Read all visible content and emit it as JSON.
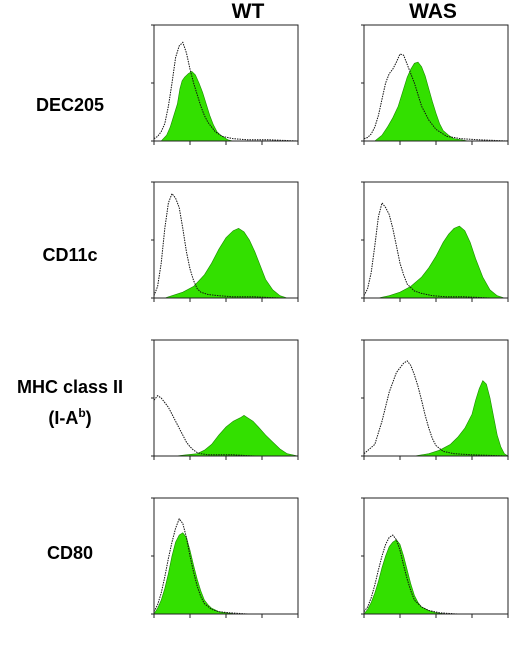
{
  "columns": [
    "WT",
    "WAS"
  ],
  "rows": [
    {
      "label": "DEC205"
    },
    {
      "label": "CD11c"
    },
    {
      "label": "MHC class II",
      "label2_prefix": "(I-A",
      "label2_sup": "b",
      "label2_suffix": ")"
    },
    {
      "label": "CD80"
    }
  ],
  "colors": {
    "filled": "#33e000",
    "outline": "#111111",
    "axis": "#222222"
  },
  "chart_data": [
    {
      "type": "area",
      "row": "DEC205",
      "column": "WT",
      "xlim": [
        0,
        4
      ],
      "ylim": [
        0,
        1
      ],
      "series": [
        {
          "style": "filled",
          "x": [
            0,
            0.2,
            0.35,
            0.45,
            0.55,
            0.65,
            0.72,
            0.78,
            0.85,
            0.95,
            1.05,
            1.15,
            1.25,
            1.35,
            1.45,
            1.55,
            1.65,
            1.75,
            1.85,
            1.95,
            2.05,
            2.2,
            2.4
          ],
          "values": [
            0,
            0,
            0.05,
            0.12,
            0.22,
            0.32,
            0.45,
            0.52,
            0.55,
            0.58,
            0.6,
            0.57,
            0.5,
            0.42,
            0.32,
            0.22,
            0.14,
            0.08,
            0.05,
            0.03,
            0.01,
            0,
            0
          ]
        },
        {
          "style": "outline",
          "x": [
            0,
            0.1,
            0.2,
            0.3,
            0.4,
            0.5,
            0.6,
            0.7,
            0.8,
            0.9,
            1.0,
            1.1,
            1.2,
            1.3,
            1.4,
            1.5,
            1.7,
            1.9,
            2.2,
            2.6,
            3.2,
            4.0
          ],
          "values": [
            0.02,
            0.04,
            0.08,
            0.15,
            0.3,
            0.5,
            0.72,
            0.82,
            0.85,
            0.76,
            0.62,
            0.5,
            0.4,
            0.3,
            0.22,
            0.16,
            0.08,
            0.04,
            0.02,
            0.01,
            0.01,
            0
          ]
        }
      ]
    },
    {
      "type": "area",
      "row": "DEC205",
      "column": "WAS",
      "xlim": [
        0,
        4
      ],
      "ylim": [
        0,
        1
      ],
      "series": [
        {
          "style": "filled",
          "x": [
            0,
            0.3,
            0.5,
            0.65,
            0.8,
            0.95,
            1.1,
            1.2,
            1.3,
            1.4,
            1.5,
            1.6,
            1.7,
            1.8,
            1.9,
            2.0,
            2.1,
            2.2,
            2.35,
            2.5,
            2.7,
            2.9
          ],
          "values": [
            0,
            0,
            0.05,
            0.12,
            0.2,
            0.3,
            0.45,
            0.55,
            0.62,
            0.67,
            0.68,
            0.64,
            0.56,
            0.45,
            0.34,
            0.24,
            0.15,
            0.09,
            0.05,
            0.02,
            0.01,
            0
          ]
        },
        {
          "style": "outline",
          "x": [
            0,
            0.1,
            0.2,
            0.3,
            0.4,
            0.5,
            0.6,
            0.7,
            0.8,
            0.9,
            1.0,
            1.1,
            1.2,
            1.3,
            1.4,
            1.5,
            1.6,
            1.8,
            2.0,
            2.3,
            2.7,
            3.2,
            4.0
          ],
          "values": [
            0.02,
            0.03,
            0.06,
            0.12,
            0.22,
            0.36,
            0.5,
            0.58,
            0.62,
            0.68,
            0.75,
            0.74,
            0.66,
            0.58,
            0.5,
            0.4,
            0.3,
            0.18,
            0.1,
            0.04,
            0.02,
            0.01,
            0
          ]
        }
      ]
    },
    {
      "type": "area",
      "row": "CD11c",
      "column": "WT",
      "xlim": [
        0,
        4
      ],
      "ylim": [
        0,
        1
      ],
      "series": [
        {
          "style": "filled",
          "x": [
            0,
            0.3,
            0.5,
            0.8,
            1.1,
            1.4,
            1.6,
            1.8,
            2.0,
            2.2,
            2.35,
            2.5,
            2.65,
            2.8,
            2.95,
            3.1,
            3.3,
            3.5,
            3.7,
            4.0
          ],
          "values": [
            0,
            0,
            0.02,
            0.05,
            0.1,
            0.2,
            0.3,
            0.42,
            0.52,
            0.58,
            0.6,
            0.57,
            0.5,
            0.4,
            0.28,
            0.16,
            0.07,
            0.02,
            0,
            0
          ]
        },
        {
          "style": "outline",
          "x": [
            0,
            0.1,
            0.2,
            0.3,
            0.4,
            0.5,
            0.6,
            0.7,
            0.8,
            0.9,
            1.0,
            1.1,
            1.2,
            1.3,
            1.5,
            1.8,
            2.2,
            2.8,
            3.5,
            4.0
          ],
          "values": [
            0.02,
            0.1,
            0.3,
            0.6,
            0.82,
            0.9,
            0.86,
            0.78,
            0.6,
            0.4,
            0.25,
            0.15,
            0.08,
            0.05,
            0.03,
            0.02,
            0.01,
            0.01,
            0,
            0
          ]
        }
      ]
    },
    {
      "type": "area",
      "row": "CD11c",
      "column": "WAS",
      "xlim": [
        0,
        4
      ],
      "ylim": [
        0,
        1
      ],
      "series": [
        {
          "style": "filled",
          "x": [
            0,
            0.4,
            0.7,
            1.0,
            1.3,
            1.6,
            1.8,
            2.0,
            2.2,
            2.35,
            2.5,
            2.65,
            2.8,
            2.95,
            3.1,
            3.3,
            3.5,
            3.7,
            3.9,
            4.0
          ],
          "values": [
            0,
            0,
            0.02,
            0.05,
            0.1,
            0.18,
            0.26,
            0.36,
            0.48,
            0.55,
            0.6,
            0.62,
            0.58,
            0.48,
            0.34,
            0.18,
            0.07,
            0.02,
            0,
            0
          ]
        },
        {
          "style": "outline",
          "x": [
            0,
            0.1,
            0.2,
            0.3,
            0.4,
            0.5,
            0.6,
            0.7,
            0.8,
            0.9,
            1.0,
            1.1,
            1.2,
            1.4,
            1.6,
            1.9,
            2.3,
            2.8,
            3.5,
            4.0
          ],
          "values": [
            0.02,
            0.08,
            0.22,
            0.45,
            0.7,
            0.82,
            0.78,
            0.72,
            0.6,
            0.45,
            0.3,
            0.2,
            0.12,
            0.06,
            0.04,
            0.02,
            0.01,
            0.01,
            0,
            0
          ]
        }
      ]
    },
    {
      "type": "area",
      "row": "MHC class II (I-A b)",
      "column": "WT",
      "xlim": [
        0,
        4
      ],
      "ylim": [
        0,
        1
      ],
      "series": [
        {
          "style": "filled",
          "x": [
            0,
            0.6,
            0.9,
            1.2,
            1.4,
            1.6,
            1.8,
            2.0,
            2.2,
            2.4,
            2.5,
            2.6,
            2.75,
            2.9,
            3.1,
            3.3,
            3.5,
            3.7,
            4.0
          ],
          "values": [
            0,
            0,
            0.01,
            0.02,
            0.05,
            0.1,
            0.18,
            0.25,
            0.3,
            0.33,
            0.35,
            0.33,
            0.3,
            0.25,
            0.18,
            0.12,
            0.06,
            0.02,
            0
          ]
        },
        {
          "style": "outline",
          "x": [
            0,
            0.1,
            0.2,
            0.3,
            0.4,
            0.5,
            0.6,
            0.7,
            0.8,
            0.9,
            1.0,
            1.1,
            1.2,
            1.3,
            1.5,
            1.8,
            2.2,
            2.8,
            3.5,
            4.0
          ],
          "values": [
            0.48,
            0.52,
            0.5,
            0.46,
            0.42,
            0.36,
            0.3,
            0.24,
            0.18,
            0.12,
            0.08,
            0.05,
            0.03,
            0.02,
            0.01,
            0.01,
            0.01,
            0,
            0,
            0
          ]
        }
      ]
    },
    {
      "type": "area",
      "row": "MHC class II (I-A b)",
      "column": "WAS",
      "xlim": [
        0,
        4
      ],
      "ylim": [
        0,
        1
      ],
      "series": [
        {
          "style": "filled",
          "x": [
            0,
            1.4,
            1.8,
            2.1,
            2.4,
            2.6,
            2.8,
            3.0,
            3.1,
            3.2,
            3.3,
            3.4,
            3.5,
            3.6,
            3.7,
            3.8,
            3.9,
            4.0
          ],
          "values": [
            0,
            0,
            0.02,
            0.05,
            0.1,
            0.16,
            0.24,
            0.36,
            0.48,
            0.58,
            0.65,
            0.62,
            0.5,
            0.34,
            0.18,
            0.08,
            0.02,
            0
          ]
        },
        {
          "style": "outline",
          "x": [
            0,
            0.3,
            0.5,
            0.7,
            0.9,
            1.1,
            1.2,
            1.3,
            1.4,
            1.5,
            1.6,
            1.7,
            1.8,
            1.9,
            2.0,
            2.2,
            2.5,
            3.0,
            4.0
          ],
          "values": [
            0.02,
            0.1,
            0.3,
            0.55,
            0.72,
            0.8,
            0.82,
            0.78,
            0.7,
            0.6,
            0.48,
            0.35,
            0.24,
            0.15,
            0.09,
            0.04,
            0.02,
            0.01,
            0
          ]
        }
      ]
    },
    {
      "type": "area",
      "row": "CD80",
      "column": "WT",
      "xlim": [
        0,
        4
      ],
      "ylim": [
        0,
        1
      ],
      "series": [
        {
          "style": "filled",
          "x": [
            0,
            0.1,
            0.2,
            0.3,
            0.4,
            0.5,
            0.6,
            0.7,
            0.8,
            0.9,
            1.0,
            1.1,
            1.2,
            1.3,
            1.4,
            1.5,
            1.6,
            1.8,
            2.0,
            2.3,
            2.7,
            3.2,
            4.0
          ],
          "values": [
            0,
            0.05,
            0.12,
            0.22,
            0.35,
            0.5,
            0.62,
            0.68,
            0.7,
            0.66,
            0.55,
            0.42,
            0.3,
            0.2,
            0.12,
            0.08,
            0.05,
            0.02,
            0.01,
            0,
            0,
            0,
            0
          ]
        },
        {
          "style": "outline",
          "x": [
            0,
            0.1,
            0.2,
            0.3,
            0.4,
            0.5,
            0.6,
            0.7,
            0.8,
            0.9,
            1.0,
            1.1,
            1.2,
            1.3,
            1.4,
            1.6,
            1.8,
            2.1,
            2.6,
            3.2,
            4.0
          ],
          "values": [
            0.02,
            0.08,
            0.18,
            0.32,
            0.48,
            0.62,
            0.74,
            0.82,
            0.78,
            0.66,
            0.5,
            0.36,
            0.24,
            0.15,
            0.09,
            0.04,
            0.02,
            0.01,
            0,
            0,
            0
          ]
        }
      ]
    },
    {
      "type": "area",
      "row": "CD80",
      "column": "WAS",
      "xlim": [
        0,
        4
      ],
      "ylim": [
        0,
        1
      ],
      "series": [
        {
          "style": "filled",
          "x": [
            0,
            0.1,
            0.2,
            0.3,
            0.4,
            0.5,
            0.6,
            0.7,
            0.8,
            0.9,
            1.0,
            1.1,
            1.2,
            1.3,
            1.4,
            1.5,
            1.6,
            1.8,
            2.0,
            2.3,
            2.7,
            3.2,
            4.0
          ],
          "values": [
            0,
            0.04,
            0.1,
            0.18,
            0.28,
            0.4,
            0.5,
            0.58,
            0.62,
            0.64,
            0.6,
            0.5,
            0.38,
            0.26,
            0.16,
            0.1,
            0.06,
            0.03,
            0.01,
            0,
            0,
            0,
            0
          ]
        },
        {
          "style": "outline",
          "x": [
            0,
            0.1,
            0.2,
            0.3,
            0.4,
            0.5,
            0.6,
            0.7,
            0.8,
            0.9,
            1.0,
            1.1,
            1.2,
            1.3,
            1.4,
            1.6,
            1.8,
            2.1,
            2.6,
            3.2,
            4.0
          ],
          "values": [
            0.02,
            0.06,
            0.14,
            0.25,
            0.38,
            0.5,
            0.6,
            0.66,
            0.68,
            0.64,
            0.55,
            0.42,
            0.3,
            0.2,
            0.12,
            0.06,
            0.03,
            0.01,
            0,
            0,
            0
          ]
        }
      ]
    }
  ]
}
